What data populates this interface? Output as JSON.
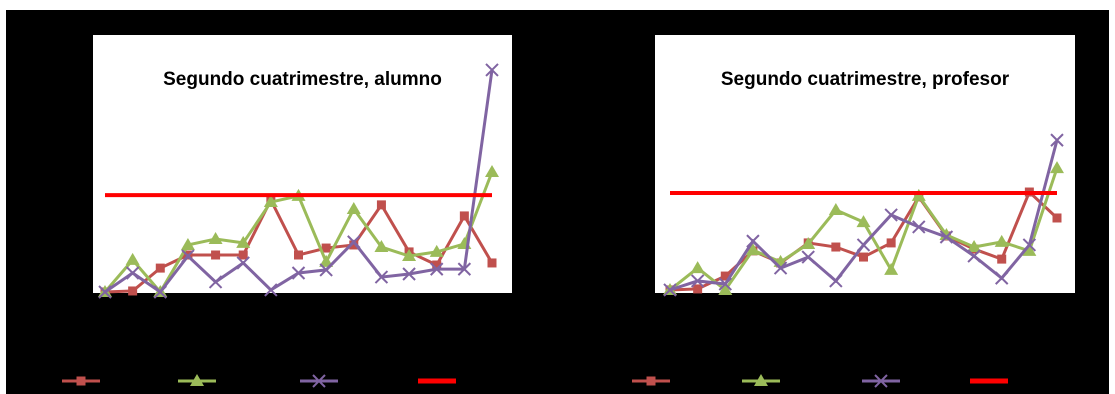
{
  "chart_data": [
    {
      "type": "line",
      "title": "Segundo cuatrimestre, alumno",
      "ylim": [
        0,
        10
      ],
      "series": [
        {
          "color": "#c0504d",
          "marker": "square",
          "values": [
            0,
            0.04,
            0.93,
            1.44,
            1.44,
            1.44,
            3.58,
            1.44,
            1.71,
            1.83,
            3.39,
            1.56,
            1.05,
            2.96,
            1.13
          ]
        },
        {
          "color": "#9bbb59",
          "marker": "triangle",
          "values": [
            0,
            1.25,
            0,
            1.83,
            2.06,
            1.91,
            3.5,
            3.74,
            1.17,
            3.23,
            1.75,
            1.4,
            1.56,
            1.87,
            4.67
          ]
        },
        {
          "color": "#8064a2",
          "marker": "cross",
          "values": [
            0,
            0.74,
            0,
            1.4,
            0.39,
            1.13,
            0.08,
            0.74,
            0.86,
            1.95,
            0.58,
            0.7,
            0.89,
            0.89,
            8.64
          ]
        },
        {
          "color": "#ff0000",
          "marker": "none",
          "values": [
            3.77,
            3.77,
            3.77,
            3.77,
            3.77,
            3.77,
            3.77,
            3.77,
            3.77,
            3.77,
            3.77,
            3.77,
            3.77,
            3.77,
            3.77
          ]
        }
      ]
    },
    {
      "type": "line",
      "title": "Segundo cuatrimestre, profesor",
      "ylim": [
        0,
        10
      ],
      "series": [
        {
          "color": "#c0504d",
          "marker": "square",
          "values": [
            0.08,
            0.12,
            0.62,
            1.6,
            1.13,
            1.91,
            1.75,
            1.36,
            1.91,
            3.7,
            2.18,
            1.67,
            1.28,
            3.89,
            2.88
          ]
        },
        {
          "color": "#9bbb59",
          "marker": "triangle",
          "values": [
            0.08,
            0.93,
            0.08,
            1.63,
            1.17,
            1.87,
            3.19,
            2.72,
            0.86,
            3.74,
            2.22,
            1.75,
            1.95,
            1.6,
            4.82
          ]
        },
        {
          "color": "#8064a2",
          "marker": "cross",
          "values": [
            0.08,
            0.43,
            0.31,
            1.98,
            0.93,
            1.36,
            0.43,
            1.83,
            3.0,
            2.53,
            2.14,
            1.4,
            0.54,
            1.83,
            5.91
          ]
        },
        {
          "color": "#ff0000",
          "marker": "none",
          "values": [
            3.85,
            3.85,
            3.85,
            3.85,
            3.85,
            3.85,
            3.85,
            3.85,
            3.85,
            3.85,
            3.85,
            3.85,
            3.85,
            3.85,
            3.85
          ]
        }
      ]
    }
  ]
}
